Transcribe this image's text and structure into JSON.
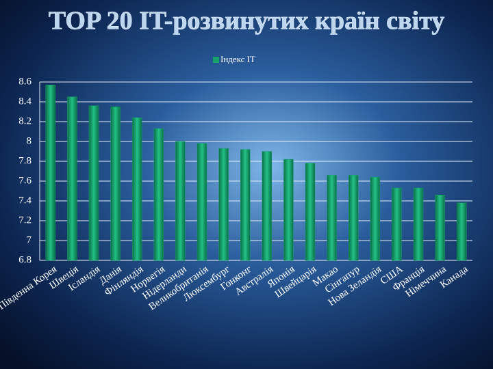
{
  "chart_data": {
    "type": "bar",
    "title": "TOP 20 IT-розвинутих країн світу",
    "categories": [
      "Південна Корея",
      "Швеція",
      "Ісландія",
      "Данія",
      "Фінляндія",
      "Норвегія",
      "Нідерланди",
      "Великобританія",
      "Люксембург",
      "Гонконг",
      "Австралія",
      "Японія",
      "Швейцарія",
      "Макао",
      "Сінгапур",
      "Нова Зеландія",
      "США",
      "Франція",
      "Німеччина",
      "Канада"
    ],
    "series": [
      {
        "name": "Індекс IT",
        "color": "#16a36e",
        "values": [
          8.57,
          8.45,
          8.36,
          8.35,
          8.24,
          8.13,
          8.0,
          7.98,
          7.93,
          7.92,
          7.9,
          7.82,
          7.78,
          7.66,
          7.66,
          7.64,
          7.53,
          7.53,
          7.46,
          7.38
        ]
      }
    ],
    "ylim": [
      6.8,
      8.6
    ],
    "yticks": [
      6.8,
      7,
      7.2,
      7.4,
      7.6,
      7.8,
      8,
      8.2,
      8.4,
      8.6
    ],
    "grid": true,
    "legend": "top"
  }
}
